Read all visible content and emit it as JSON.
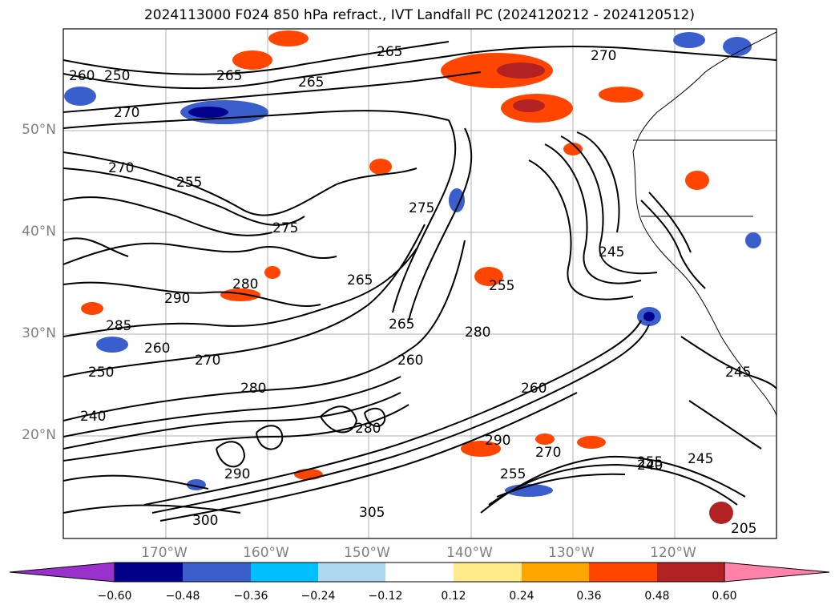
{
  "title": "2024113000 F024 850 hPa refract., IVT Landfall PC (2024120212 - 2024120512)",
  "map": {
    "lat_labels": [
      "50°N",
      "40°N",
      "30°N",
      "20°N"
    ],
    "lon_labels": [
      "170°W",
      "160°W",
      "150°W",
      "140°W",
      "130°W",
      "120°W"
    ],
    "contour_labels": [
      "250",
      "260",
      "265",
      "265",
      "270",
      "270",
      "265",
      "270",
      "275",
      "255",
      "280",
      "290",
      "285",
      "260",
      "270",
      "245",
      "250",
      "280",
      "265",
      "265",
      "275",
      "260",
      "255",
      "280",
      "260",
      "290",
      "280",
      "245",
      "240",
      "270",
      "290",
      "300",
      "305",
      "255",
      "240",
      "255",
      "245",
      "205"
    ]
  },
  "colorbar": {
    "ticks": [
      "−0.60",
      "−0.48",
      "−0.36",
      "−0.24",
      "−0.12",
      "0.12",
      "0.24",
      "0.36",
      "0.48",
      "0.60"
    ],
    "colors": [
      "#9932cc",
      "#8a2be2",
      "#00008b",
      "#3a5fcd",
      "#00bfff",
      "#add8f0",
      "#ffffff",
      "#ffeb8a",
      "#ffa500",
      "#ff4500",
      "#b22222",
      "#ff82ab",
      "#ff82ab"
    ]
  }
}
